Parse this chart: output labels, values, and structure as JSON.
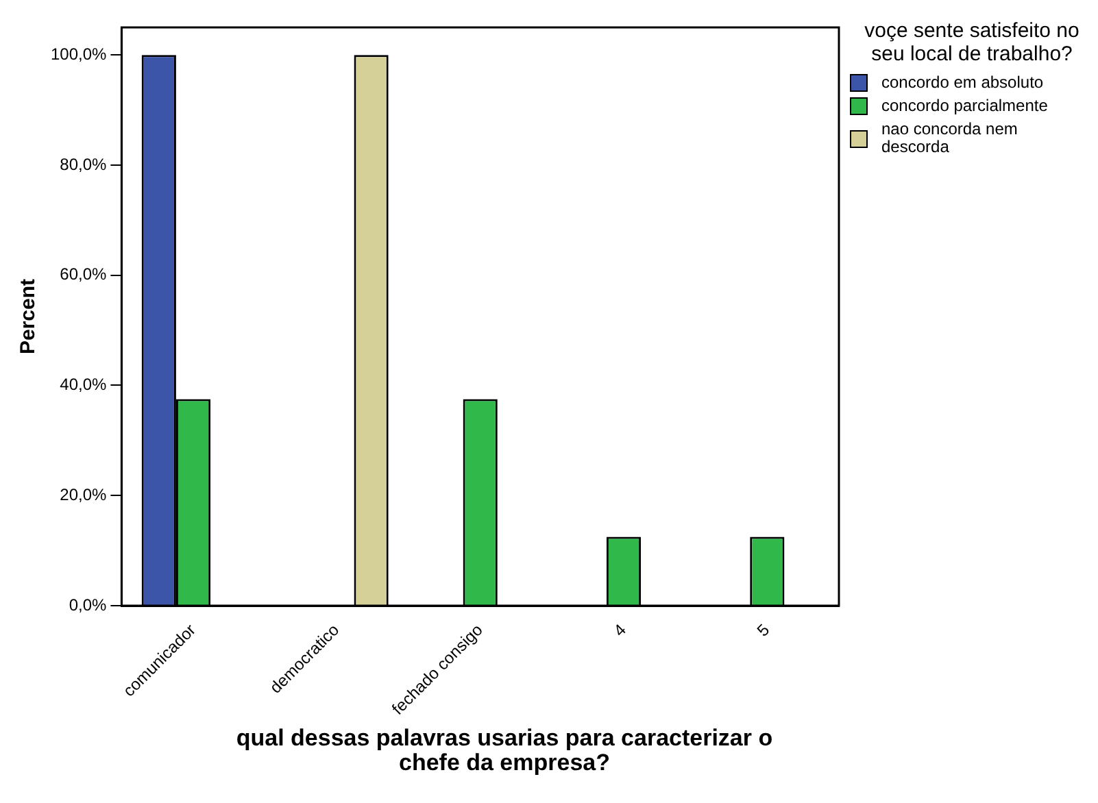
{
  "chart_data": {
    "type": "bar",
    "xlabel": "qual dessas palavras usarias para caracterizar o chefe da empresa?",
    "ylabel": "Percent",
    "legend_title": "voçe sente satisfeito no seu local de trabalho?",
    "legend": "top right",
    "grid": false,
    "categories": [
      "comunicador",
      "democratico",
      "fechado consigo",
      "4",
      "5"
    ],
    "series": [
      {
        "name": "concordo em absoluto",
        "color": "#3d55a8",
        "values": [
          100,
          null,
          null,
          null,
          null
        ]
      },
      {
        "name": "concordo parcialmente",
        "color": "#31b84a",
        "values": [
          37.5,
          null,
          37.5,
          12.5,
          12.5
        ]
      },
      {
        "name": "nao concorda nem descorda",
        "color": "#d5cf98",
        "values": [
          null,
          100,
          null,
          null,
          null
        ]
      }
    ],
    "ylim": [
      0,
      105
    ],
    "yticks": [
      {
        "value": 0,
        "label": "0,0%"
      },
      {
        "value": 20,
        "label": "20,0%"
      },
      {
        "value": 40,
        "label": "40,0%"
      },
      {
        "value": 60,
        "label": "60,0%"
      },
      {
        "value": 80,
        "label": "80,0%"
      },
      {
        "value": 100,
        "label": "100,0%"
      }
    ]
  }
}
